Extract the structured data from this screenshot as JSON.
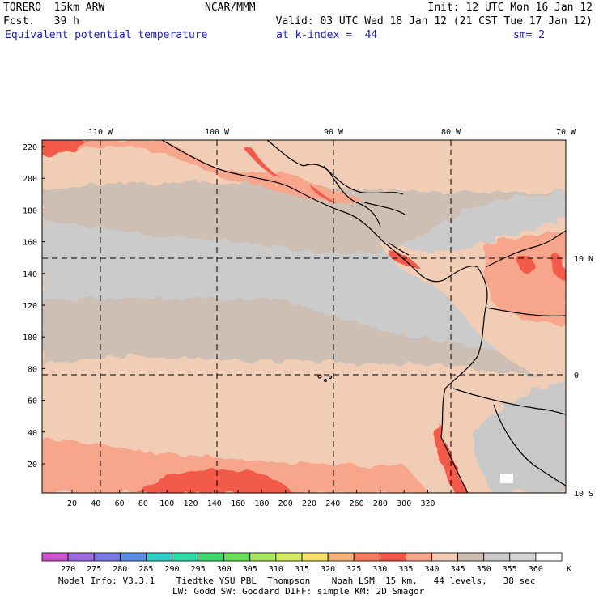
{
  "header": {
    "model": "TORERO  15km ARW",
    "center": "NCAR/MMM",
    "init": "Init: 12 UTC Mon 16 Jan 12",
    "fcst": "Fcst.   39 h",
    "valid": "Valid: 03 UTC Wed 18 Jan 12 (21 CST Tue 17 Jan 12)",
    "field": "Equivalent potential temperature",
    "level": "at k-index =  44",
    "smoothing": "sm= 2"
  },
  "map": {
    "top_labels": [
      "110 W",
      "100 W",
      "90 W",
      "80 W",
      "70 W"
    ],
    "right_labels": [
      "10 N",
      "0",
      "10 S"
    ],
    "left_ticks": [
      "220",
      "200",
      "180",
      "160",
      "140",
      "120",
      "100",
      "80",
      "60",
      "40",
      "20"
    ],
    "bottom_ticks": [
      "20",
      "40",
      "60",
      "80",
      "100",
      "120",
      "140",
      "160",
      "180",
      "200",
      "220",
      "240",
      "260",
      "280",
      "300",
      "320"
    ],
    "colors": {
      "water_cool": "#cbcbcb",
      "water_mid": "#cdbfb4",
      "warm_340": "#f2cdb6",
      "warm_335": "#f7a58b",
      "hot_330": "#f25a4a",
      "coast": "#000000"
    }
  },
  "colorbar": {
    "levels": [
      "270",
      "275",
      "280",
      "285",
      "290",
      "295",
      "300",
      "305",
      "310",
      "315",
      "320",
      "325",
      "330",
      "335",
      "340",
      "345",
      "350",
      "355",
      "360"
    ],
    "unit": "K",
    "colors": [
      "#cc55cc",
      "#9e6ee0",
      "#7a78e6",
      "#5a8fe8",
      "#2fcfc8",
      "#2edca8",
      "#3ed86e",
      "#6ae05a",
      "#a8e85e",
      "#d6ee64",
      "#f6e06a",
      "#f5b27a",
      "#f57a5e",
      "#f2584a",
      "#f7a58b",
      "#f2cdb6",
      "#cdbfb4",
      "#cbcbcb",
      "#d6d6d6",
      "#ffffff"
    ]
  },
  "footer": {
    "line1": "Model Info: V3.3.1    Tiedtke YSU PBL  Thompson    Noah LSM  15 km,   44 levels,   38 sec",
    "line2": "LW: Godd SW: Goddard DIFF: simple KM: 2D Smagor"
  }
}
